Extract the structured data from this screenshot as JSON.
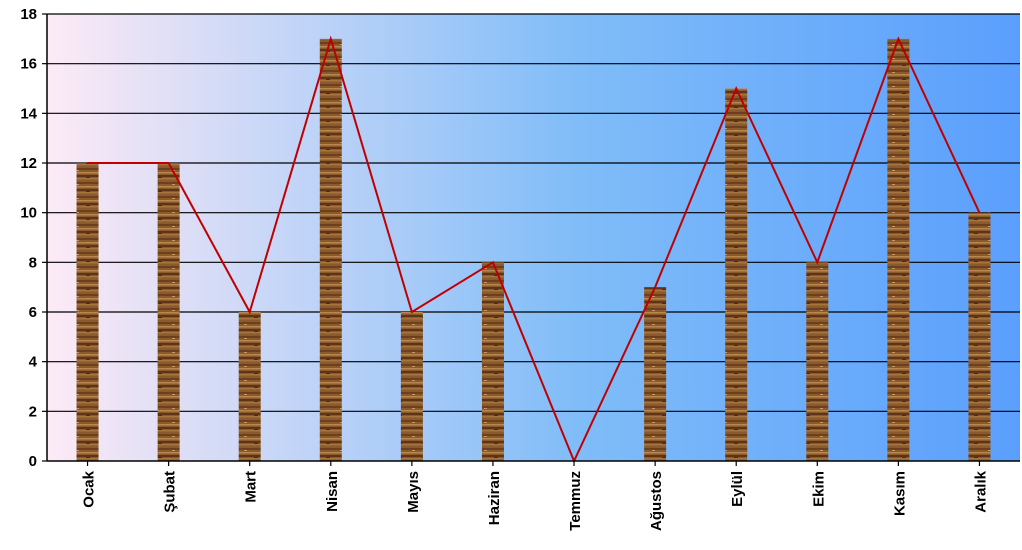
{
  "chart_data": {
    "type": "bar",
    "categories": [
      "Ocak",
      "Şubat",
      "Mart",
      "Nisan",
      "Mayıs",
      "Haziran",
      "Temmuz",
      "Ağustos",
      "Eylül",
      "Ekim",
      "Kasım",
      "Aralık"
    ],
    "series": [
      {
        "values": [
          12,
          12,
          6,
          17,
          6,
          8,
          0,
          7,
          15,
          8,
          17,
          10
        ]
      }
    ],
    "overlay_line": true,
    "ylim": [
      0,
      18
    ],
    "yticks": [
      0,
      2,
      4,
      6,
      8,
      10,
      12,
      14,
      16,
      18
    ],
    "grid": true,
    "colors": {
      "bar": "#8a5a2b",
      "line": "#c00000",
      "bg_left": "#fdeaf6",
      "bg_mid": "#7fbcf8",
      "bg_right": "#5b9ffd"
    }
  }
}
